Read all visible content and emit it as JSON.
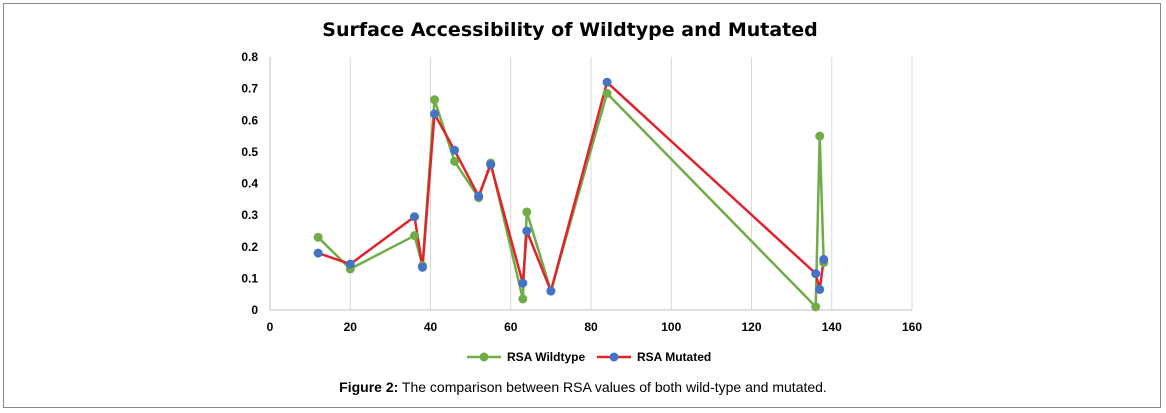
{
  "chart_data": {
    "type": "line",
    "title": "Surface Accessibility of Wildtype and Mutated",
    "xlabel": "",
    "ylabel": "",
    "xlim": [
      0,
      160
    ],
    "ylim": [
      0,
      0.8
    ],
    "x_ticks": [
      0,
      20,
      40,
      60,
      80,
      100,
      120,
      140,
      160
    ],
    "y_ticks": [
      0,
      0.1,
      0.2,
      0.3,
      0.4,
      0.5,
      0.6,
      0.7,
      0.8
    ],
    "y_tick_labels": [
      "0",
      "0.1",
      "0.2",
      "0.3",
      "0.4",
      "0.5",
      "0.6",
      "0.7",
      "0.8"
    ],
    "grid": "vertical",
    "legend_position": "bottom",
    "series": [
      {
        "name": "RSA Wildtype",
        "color": "#70ad47",
        "points": [
          [
            12,
            0.23
          ],
          [
            20,
            0.13
          ],
          [
            36,
            0.235
          ],
          [
            38,
            0.14
          ],
          [
            41,
            0.665
          ],
          [
            46,
            0.47
          ],
          [
            52,
            0.355
          ],
          [
            55,
            0.465
          ],
          [
            63,
            0.035
          ],
          [
            64,
            0.31
          ],
          [
            70,
            0.06
          ],
          [
            84,
            0.685
          ],
          [
            136,
            0.01
          ],
          [
            137,
            0.55
          ],
          [
            138,
            0.15
          ]
        ]
      },
      {
        "name": "RSA Mutated",
        "color": "#e0242c",
        "marker_color": "#4472c4",
        "points": [
          [
            12,
            0.18
          ],
          [
            20,
            0.145
          ],
          [
            36,
            0.295
          ],
          [
            38,
            0.135
          ],
          [
            41,
            0.62
          ],
          [
            46,
            0.505
          ],
          [
            52,
            0.36
          ],
          [
            55,
            0.46
          ],
          [
            63,
            0.085
          ],
          [
            64,
            0.25
          ],
          [
            70,
            0.06
          ],
          [
            84,
            0.72
          ],
          [
            136,
            0.115
          ],
          [
            137,
            0.065
          ],
          [
            138,
            0.16
          ]
        ]
      }
    ]
  },
  "caption": {
    "label": "Figure 2:",
    "text": " The comparison between RSA values of both wild-type and mutated."
  }
}
